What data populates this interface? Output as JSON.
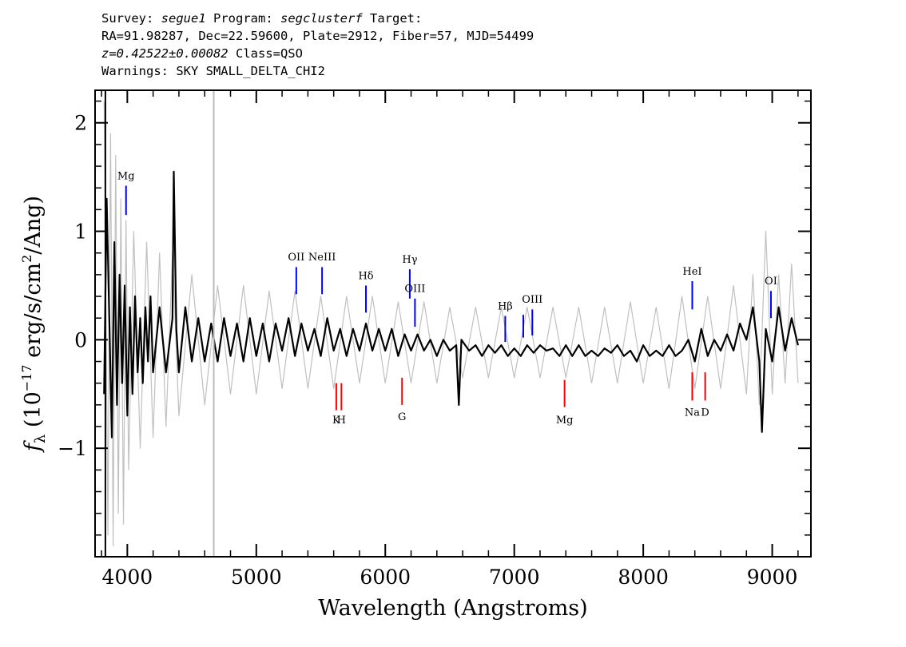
{
  "header": {
    "survey_label": "Survey:",
    "survey": "segue1",
    "program_label": "Program:",
    "program": "segclusterf",
    "target_label": "Target:",
    "line2": "RA=91.98287, Dec=22.59600, Plate=2912, Fiber=57, MJD=54499",
    "redshift": "z=0.42522±0.00082",
    "class": "Class=QSO",
    "warnings": "Warnings: SKY SMALL_DELTA_CHI2"
  },
  "chart_data": {
    "type": "line",
    "title": "",
    "xlabel": "Wavelength (Angstroms)",
    "ylabel_prefix": "f",
    "ylabel_sub": "λ",
    "ylabel_rest": " (10",
    "ylabel_exp": "−17",
    "ylabel_units": " erg/s/cm",
    "ylabel_sq": "2",
    "ylabel_tail": "/Ang)",
    "xlim": [
      3750,
      9300
    ],
    "ylim": [
      -2.0,
      2.3
    ],
    "xticks": [
      4000,
      5000,
      6000,
      7000,
      8000,
      9000
    ],
    "xtick_labels": [
      "4000",
      "5000",
      "6000",
      "7000",
      "8000",
      "9000"
    ],
    "yticks": [
      -1,
      0,
      1,
      2
    ],
    "ytick_labels": [
      "−1",
      "0",
      "1",
      "2"
    ],
    "series": [
      {
        "role": "flux",
        "color": "#000000",
        "points": [
          [
            3820,
            -0.5
          ],
          [
            3840,
            1.3
          ],
          [
            3860,
            0.2
          ],
          [
            3880,
            -0.9
          ],
          [
            3900,
            0.9
          ],
          [
            3920,
            -0.6
          ],
          [
            3940,
            0.6
          ],
          [
            3960,
            -0.4
          ],
          [
            3980,
            0.5
          ],
          [
            4000,
            -0.7
          ],
          [
            4020,
            0.3
          ],
          [
            4040,
            -0.5
          ],
          [
            4060,
            0.4
          ],
          [
            4080,
            -0.3
          ],
          [
            4100,
            0.2
          ],
          [
            4120,
            -0.4
          ],
          [
            4140,
            0.3
          ],
          [
            4160,
            -0.2
          ],
          [
            4180,
            0.4
          ],
          [
            4200,
            -0.3
          ],
          [
            4250,
            0.3
          ],
          [
            4300,
            -0.3
          ],
          [
            4350,
            0.2
          ],
          [
            4360,
            1.55
          ],
          [
            4380,
            0.1
          ],
          [
            4400,
            -0.3
          ],
          [
            4450,
            0.3
          ],
          [
            4500,
            -0.2
          ],
          [
            4550,
            0.2
          ],
          [
            4600,
            -0.2
          ],
          [
            4650,
            0.15
          ],
          [
            4700,
            -0.2
          ],
          [
            4750,
            0.2
          ],
          [
            4800,
            -0.15
          ],
          [
            4850,
            0.15
          ],
          [
            4900,
            -0.2
          ],
          [
            4950,
            0.2
          ],
          [
            5000,
            -0.15
          ],
          [
            5050,
            0.15
          ],
          [
            5100,
            -0.2
          ],
          [
            5150,
            0.15
          ],
          [
            5200,
            -0.1
          ],
          [
            5250,
            0.2
          ],
          [
            5300,
            -0.15
          ],
          [
            5350,
            0.15
          ],
          [
            5400,
            -0.1
          ],
          [
            5450,
            0.1
          ],
          [
            5500,
            -0.15
          ],
          [
            5550,
            0.2
          ],
          [
            5600,
            -0.1
          ],
          [
            5650,
            0.1
          ],
          [
            5700,
            -0.15
          ],
          [
            5750,
            0.1
          ],
          [
            5800,
            -0.1
          ],
          [
            5850,
            0.15
          ],
          [
            5900,
            -0.1
          ],
          [
            5950,
            0.1
          ],
          [
            6000,
            -0.1
          ],
          [
            6050,
            0.1
          ],
          [
            6100,
            -0.15
          ],
          [
            6150,
            0.05
          ],
          [
            6200,
            -0.1
          ],
          [
            6250,
            0.05
          ],
          [
            6300,
            -0.1
          ],
          [
            6350,
            0.0
          ],
          [
            6400,
            -0.15
          ],
          [
            6450,
            0.0
          ],
          [
            6500,
            -0.1
          ],
          [
            6550,
            -0.05
          ],
          [
            6570,
            -0.6
          ],
          [
            6590,
            0.0
          ],
          [
            6650,
            -0.1
          ],
          [
            6700,
            -0.05
          ],
          [
            6750,
            -0.15
          ],
          [
            6800,
            -0.05
          ],
          [
            6850,
            -0.12
          ],
          [
            6900,
            -0.05
          ],
          [
            6950,
            -0.15
          ],
          [
            7000,
            -0.08
          ],
          [
            7050,
            -0.15
          ],
          [
            7100,
            -0.05
          ],
          [
            7150,
            -0.12
          ],
          [
            7200,
            -0.05
          ],
          [
            7250,
            -0.1
          ],
          [
            7300,
            -0.08
          ],
          [
            7350,
            -0.15
          ],
          [
            7400,
            -0.05
          ],
          [
            7450,
            -0.15
          ],
          [
            7500,
            -0.05
          ],
          [
            7550,
            -0.15
          ],
          [
            7600,
            -0.1
          ],
          [
            7650,
            -0.15
          ],
          [
            7700,
            -0.08
          ],
          [
            7750,
            -0.12
          ],
          [
            7800,
            -0.05
          ],
          [
            7850,
            -0.15
          ],
          [
            7900,
            -0.1
          ],
          [
            7950,
            -0.2
          ],
          [
            8000,
            -0.05
          ],
          [
            8050,
            -0.15
          ],
          [
            8100,
            -0.1
          ],
          [
            8150,
            -0.15
          ],
          [
            8200,
            -0.05
          ],
          [
            8250,
            -0.15
          ],
          [
            8300,
            -0.1
          ],
          [
            8350,
            0.0
          ],
          [
            8400,
            -0.2
          ],
          [
            8450,
            0.1
          ],
          [
            8500,
            -0.15
          ],
          [
            8550,
            0.0
          ],
          [
            8600,
            -0.1
          ],
          [
            8650,
            0.05
          ],
          [
            8700,
            -0.1
          ],
          [
            8750,
            0.15
          ],
          [
            8800,
            0.0
          ],
          [
            8850,
            0.3
          ],
          [
            8900,
            -0.2
          ],
          [
            8920,
            -0.85
          ],
          [
            8950,
            0.1
          ],
          [
            9000,
            -0.2
          ],
          [
            9050,
            0.3
          ],
          [
            9100,
            -0.1
          ],
          [
            9150,
            0.2
          ],
          [
            9200,
            -0.05
          ]
        ]
      },
      {
        "role": "noise",
        "color": "#c0c0c0",
        "points": [
          [
            3820,
            2.2
          ],
          [
            3850,
            -1.8
          ],
          [
            3870,
            1.9
          ],
          [
            3890,
            -1.9
          ],
          [
            3910,
            1.7
          ],
          [
            3930,
            -1.6
          ],
          [
            3950,
            1.3
          ],
          [
            3970,
            -1.7
          ],
          [
            3990,
            1.1
          ],
          [
            4010,
            -1.2
          ],
          [
            4050,
            1.0
          ],
          [
            4100,
            -1.0
          ],
          [
            4150,
            0.9
          ],
          [
            4200,
            -0.9
          ],
          [
            4250,
            0.8
          ],
          [
            4300,
            -0.8
          ],
          [
            4350,
            0.8
          ],
          [
            4400,
            -0.7
          ],
          [
            4500,
            0.6
          ],
          [
            4600,
            -0.6
          ],
          [
            4700,
            0.5
          ],
          [
            4800,
            -0.5
          ],
          [
            4900,
            0.5
          ],
          [
            5000,
            -0.5
          ],
          [
            5100,
            0.45
          ],
          [
            5200,
            -0.45
          ],
          [
            5300,
            0.45
          ],
          [
            5400,
            -0.45
          ],
          [
            5500,
            0.4
          ],
          [
            5600,
            -0.45
          ],
          [
            5700,
            0.4
          ],
          [
            5800,
            -0.4
          ],
          [
            5900,
            0.4
          ],
          [
            6000,
            -0.4
          ],
          [
            6100,
            0.35
          ],
          [
            6200,
            -0.4
          ],
          [
            6300,
            0.35
          ],
          [
            6400,
            -0.4
          ],
          [
            6500,
            0.3
          ],
          [
            6600,
            -0.35
          ],
          [
            6700,
            0.3
          ],
          [
            6800,
            -0.35
          ],
          [
            6900,
            0.3
          ],
          [
            7000,
            -0.35
          ],
          [
            7100,
            0.3
          ],
          [
            7200,
            -0.35
          ],
          [
            7300,
            0.3
          ],
          [
            7400,
            -0.35
          ],
          [
            7500,
            0.3
          ],
          [
            7600,
            -0.4
          ],
          [
            7700,
            0.3
          ],
          [
            7800,
            -0.4
          ],
          [
            7900,
            0.35
          ],
          [
            8000,
            -0.4
          ],
          [
            8100,
            0.3
          ],
          [
            8200,
            -0.45
          ],
          [
            8300,
            0.4
          ],
          [
            8400,
            -0.45
          ],
          [
            8500,
            0.4
          ],
          [
            8600,
            -0.45
          ],
          [
            8700,
            0.5
          ],
          [
            8800,
            -0.5
          ],
          [
            8850,
            0.6
          ],
          [
            8900,
            -0.6
          ],
          [
            8950,
            1.0
          ],
          [
            9000,
            -0.5
          ],
          [
            9050,
            0.6
          ],
          [
            9100,
            -0.4
          ],
          [
            9150,
            0.7
          ],
          [
            9200,
            -0.4
          ]
        ]
      }
    ],
    "vlines": [
      {
        "x": 3830,
        "y0": -2.0,
        "y1": 2.3,
        "color": "#000000"
      },
      {
        "x": 4670,
        "y0": -2.0,
        "y1": 2.3,
        "color": "#bbbbbb"
      }
    ],
    "emission_lines": [
      {
        "label": "Mg",
        "x": 3990,
        "y0": 1.15,
        "y1": 1.42,
        "label_y": 1.48,
        "color": "#0000ff"
      },
      {
        "label": "OII",
        "x": 5310,
        "y0": 0.42,
        "y1": 0.67,
        "label_y": 0.73,
        "color": "#0000ff"
      },
      {
        "label": "NeIII",
        "x": 5510,
        "y0": 0.42,
        "y1": 0.67,
        "label_y": 0.73,
        "color": "#0000ff"
      },
      {
        "label": "Hδ",
        "x": 5850,
        "y0": 0.25,
        "y1": 0.5,
        "label_y": 0.56,
        "color": "#0000ff"
      },
      {
        "label": "Hγ",
        "x": 6190,
        "y0": 0.38,
        "y1": 0.65,
        "label_y": 0.71,
        "color": "#0000ff"
      },
      {
        "label": "OIII",
        "x": 6230,
        "y0": 0.12,
        "y1": 0.38,
        "label_y": 0.44,
        "color": "#0000ff"
      },
      {
        "label": "Hβ",
        "x": 6930,
        "y0": -0.02,
        "y1": 0.22,
        "label_y": 0.28,
        "color": "#0000ff"
      },
      {
        "label": "",
        "x": 7070,
        "y0": 0.02,
        "y1": 0.23,
        "label_y": 0.3,
        "color": "#0000ff"
      },
      {
        "label": "OIII",
        "x": 7140,
        "y0": 0.04,
        "y1": 0.28,
        "label_y": 0.34,
        "color": "#0000ff"
      },
      {
        "label": "HeI",
        "x": 8380,
        "y0": 0.28,
        "y1": 0.54,
        "label_y": 0.6,
        "color": "#0000ff"
      },
      {
        "label": "OI",
        "x": 8990,
        "y0": 0.2,
        "y1": 0.45,
        "label_y": 0.51,
        "color": "#0000ff"
      }
    ],
    "absorption_lines": [
      {
        "label": "K",
        "x": 5620,
        "y0": -0.4,
        "y1": -0.65,
        "label_y": -0.77,
        "color": "#ff0000"
      },
      {
        "label": "H",
        "x": 5660,
        "y0": -0.4,
        "y1": -0.65,
        "label_y": -0.77,
        "color": "#ff0000"
      },
      {
        "label": "G",
        "x": 6130,
        "y0": -0.35,
        "y1": -0.6,
        "label_y": -0.74,
        "color": "#ff0000"
      },
      {
        "label": "Mg",
        "x": 7390,
        "y0": -0.37,
        "y1": -0.62,
        "label_y": -0.77,
        "color": "#ff0000"
      },
      {
        "label": "Na",
        "x": 8380,
        "y0": -0.3,
        "y1": -0.56,
        "label_y": -0.7,
        "color": "#ff0000"
      },
      {
        "label": "D",
        "x": 8480,
        "y0": -0.3,
        "y1": -0.56,
        "label_y": -0.7,
        "color": "#ff0000"
      }
    ]
  }
}
